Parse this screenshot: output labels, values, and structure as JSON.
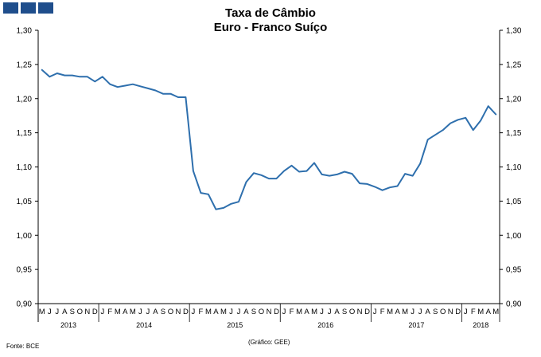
{
  "header": {
    "title_line1": "Taxa de Câmbio",
    "title_line2": "Euro - Franco Suíço"
  },
  "footer": {
    "source": "Fonte: BCE",
    "graphic": "(Gráfico:  GEE)"
  },
  "colors": {
    "line": "#2e6fad",
    "logo": "#1f4e8c",
    "axis": "#000000"
  },
  "chart_data": {
    "type": "line",
    "title": "Taxa de Câmbio Euro - Franco Suíço",
    "ylim": [
      0.9,
      1.3
    ],
    "yticks": [
      "0,90",
      "0,95",
      "1,00",
      "1,05",
      "1,10",
      "1,15",
      "1,20",
      "1,25",
      "1,30"
    ],
    "secondary_y_axis": true,
    "grid": false,
    "month_labels": [
      "M",
      "J",
      "J",
      "A",
      "S",
      "O",
      "N",
      "D",
      "J",
      "F",
      "M",
      "A",
      "M",
      "J",
      "J",
      "A",
      "S",
      "O",
      "N",
      "D",
      "J",
      "F",
      "M",
      "A",
      "M",
      "J",
      "J",
      "A",
      "S",
      "O",
      "N",
      "D",
      "J",
      "F",
      "M",
      "A",
      "M",
      "J",
      "J",
      "A",
      "S",
      "O",
      "N",
      "D",
      "J",
      "F",
      "M",
      "A",
      "M",
      "J",
      "J",
      "A",
      "S",
      "O",
      "N",
      "D",
      "J",
      "F",
      "M",
      "A",
      "M"
    ],
    "years": [
      {
        "label": "2013",
        "months": 8
      },
      {
        "label": "2014",
        "months": 12
      },
      {
        "label": "2015",
        "months": 12
      },
      {
        "label": "2016",
        "months": 12
      },
      {
        "label": "2017",
        "months": 12
      },
      {
        "label": "2018",
        "months": 5
      }
    ],
    "series": [
      {
        "values": [
          1.242,
          1.232,
          1.237,
          1.234,
          1.234,
          1.232,
          1.232,
          1.225,
          1.232,
          1.221,
          1.217,
          1.219,
          1.221,
          1.218,
          1.215,
          1.212,
          1.207,
          1.207,
          1.202,
          1.202,
          1.094,
          1.062,
          1.06,
          1.038,
          1.04,
          1.046,
          1.049,
          1.078,
          1.091,
          1.088,
          1.083,
          1.083,
          1.094,
          1.102,
          1.093,
          1.094,
          1.106,
          1.089,
          1.087,
          1.089,
          1.093,
          1.09,
          1.076,
          1.075,
          1.071,
          1.066,
          1.07,
          1.072,
          1.09,
          1.087,
          1.105,
          1.14,
          1.147,
          1.154,
          1.164,
          1.169,
          1.172,
          1.154,
          1.168,
          1.189,
          1.177
        ]
      }
    ]
  }
}
